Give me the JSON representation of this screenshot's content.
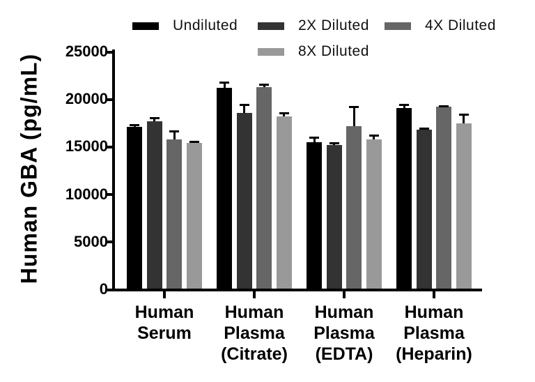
{
  "chart_data": {
    "type": "bar",
    "title": "",
    "ylabel": "Human GBA (pg/mL)",
    "xlabel": "",
    "ylim": [
      0,
      25000
    ],
    "ytick_interval": 5000,
    "ytick_labels": [
      "0",
      "5000",
      "10000",
      "15000",
      "20000",
      "25000"
    ],
    "grid": false,
    "legend_position": "top",
    "categories": [
      "Human\nSerum",
      "Human\nPlasma\n(Citrate)",
      "Human\nPlasma\n(EDTA)",
      "Human\nPlasma\n(Heparin)"
    ],
    "series": [
      {
        "name": "Undiluted",
        "color": "#000000",
        "values": [
          17000,
          21100,
          15400,
          19000
        ],
        "errors": [
          300,
          700,
          600,
          450
        ]
      },
      {
        "name": "2X Diluted",
        "color": "#333333",
        "values": [
          17600,
          18500,
          15100,
          16700
        ],
        "errors": [
          450,
          950,
          300,
          250
        ]
      },
      {
        "name": "4X Diluted",
        "color": "#666666",
        "values": [
          15700,
          21200,
          17100,
          19100
        ],
        "errors": [
          950,
          350,
          2100,
          200
        ]
      },
      {
        "name": "8X Diluted",
        "color": "#999999",
        "values": [
          15300,
          18100,
          15700,
          17400
        ],
        "errors": [
          250,
          450,
          500,
          1000
        ]
      }
    ],
    "error_bar_color": "#000000"
  }
}
